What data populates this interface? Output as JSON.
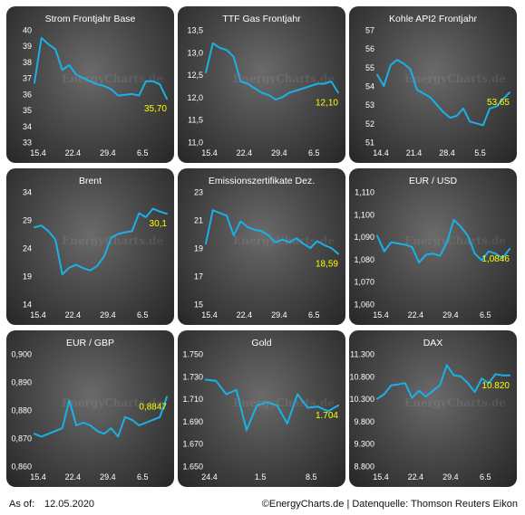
{
  "footer": {
    "as_of_label": "As of:",
    "date": "12.05.2020",
    "source": "©EnergyCharts.de | Datenquelle: Thomson Reuters Eikon"
  },
  "watermark": "EnergyCharts.de",
  "colors": {
    "line": "#1ab0e8",
    "value_label": "#ffff00",
    "text": "#ffffff"
  },
  "chart_data": [
    {
      "type": "line",
      "title": "Strom Frontjahr Base",
      "yticks": [
        "40",
        "39",
        "38",
        "37",
        "36",
        "35",
        "34",
        "33"
      ],
      "ylim": [
        33,
        40
      ],
      "xticks": [
        {
          "label": "15.4",
          "x": 0
        },
        {
          "label": "22.4",
          "x": 5
        },
        {
          "label": "29.4",
          "x": 10
        },
        {
          "label": "6.5",
          "x": 15
        }
      ],
      "xlim": [
        0,
        19
      ],
      "x": [
        0,
        1,
        2,
        3,
        4,
        5,
        6,
        7,
        8,
        9,
        10,
        11,
        12,
        13,
        14,
        15,
        16,
        17,
        18,
        19
      ],
      "values": [
        36.7,
        39.5,
        39.1,
        38.8,
        37.5,
        37.8,
        37.2,
        37.0,
        36.8,
        36.6,
        36.5,
        36.3,
        35.9,
        35.95,
        36.0,
        35.9,
        36.8,
        36.8,
        36.6,
        35.7
      ],
      "value_label": "35,70"
    },
    {
      "type": "line",
      "title": "TTF Gas Frontjahr",
      "yticks": [
        "13,5",
        "13,0",
        "12,5",
        "12,0",
        "11,5",
        "11,0"
      ],
      "ylim": [
        11.0,
        13.5
      ],
      "xticks": [
        {
          "label": "15.4",
          "x": 0
        },
        {
          "label": "22.4",
          "x": 5
        },
        {
          "label": "29.4",
          "x": 10
        },
        {
          "label": "6.5",
          "x": 15
        }
      ],
      "xlim": [
        0,
        19
      ],
      "x": [
        0,
        1,
        2,
        3,
        4,
        5,
        6,
        7,
        8,
        9,
        10,
        11,
        12,
        13,
        14,
        15,
        16,
        17,
        18,
        19
      ],
      "values": [
        12.55,
        13.2,
        13.1,
        13.05,
        12.9,
        12.35,
        12.3,
        12.2,
        12.1,
        12.05,
        11.95,
        12.0,
        12.1,
        12.15,
        12.2,
        12.25,
        12.3,
        12.3,
        12.35,
        12.1
      ],
      "value_label": "12,10"
    },
    {
      "type": "line",
      "title": "Kohle API2 Frontjahr",
      "yticks": [
        "57",
        "56",
        "55",
        "54",
        "53",
        "52",
        "51"
      ],
      "ylim": [
        51,
        57
      ],
      "xticks": [
        {
          "label": "14.4",
          "x": 0
        },
        {
          "label": "21.4",
          "x": 5
        },
        {
          "label": "28.4",
          "x": 10
        },
        {
          "label": "5.5",
          "x": 15
        }
      ],
      "xlim": [
        0,
        20
      ],
      "x": [
        0,
        1,
        2,
        3,
        4,
        5,
        6,
        7,
        8,
        9,
        10,
        11,
        12,
        13,
        14,
        15,
        16,
        17,
        18,
        19,
        20
      ],
      "values": [
        54.6,
        54.0,
        55.1,
        55.4,
        55.2,
        54.9,
        53.8,
        53.6,
        53.4,
        53.0,
        52.6,
        52.3,
        52.4,
        52.8,
        52.1,
        52.0,
        51.9,
        52.8,
        52.9,
        53.3,
        53.65
      ],
      "value_label": "53,65"
    },
    {
      "type": "line",
      "title": "Brent",
      "yticks": [
        "34",
        "29",
        "24",
        "19",
        "14"
      ],
      "ylim": [
        14,
        34
      ],
      "xticks": [
        {
          "label": "15.4",
          "x": 0
        },
        {
          "label": "22.4",
          "x": 5
        },
        {
          "label": "29.4",
          "x": 10
        },
        {
          "label": "6.5",
          "x": 15
        }
      ],
      "xlim": [
        0,
        19
      ],
      "x": [
        0,
        1,
        2,
        3,
        4,
        5,
        6,
        7,
        8,
        9,
        10,
        11,
        12,
        13,
        14,
        15,
        16,
        17,
        18,
        19
      ],
      "values": [
        27.7,
        28.0,
        27.0,
        25.5,
        19.3,
        20.5,
        21.0,
        20.4,
        20.0,
        20.8,
        22.5,
        25.8,
        26.5,
        26.8,
        27.0,
        30.2,
        29.5,
        31.0,
        30.5,
        30.1
      ],
      "value_label": "30,1"
    },
    {
      "type": "line",
      "title": "Emissionszertifikate Dez.",
      "yticks": [
        "23",
        "21",
        "19",
        "17",
        "15"
      ],
      "ylim": [
        15,
        23
      ],
      "xticks": [
        {
          "label": "15.4",
          "x": 0
        },
        {
          "label": "22.4",
          "x": 5
        },
        {
          "label": "29.4",
          "x": 10
        },
        {
          "label": "6.5",
          "x": 15
        }
      ],
      "xlim": [
        0,
        19
      ],
      "x": [
        0,
        1,
        2,
        3,
        4,
        5,
        6,
        7,
        8,
        9,
        10,
        11,
        12,
        13,
        14,
        15,
        16,
        17,
        18,
        19
      ],
      "values": [
        19.3,
        21.7,
        21.5,
        21.3,
        19.9,
        20.9,
        20.5,
        20.3,
        20.2,
        19.9,
        19.4,
        19.6,
        19.4,
        19.7,
        19.3,
        19.0,
        19.5,
        19.2,
        19.0,
        18.59
      ],
      "value_label": "18,59"
    },
    {
      "type": "line",
      "title": "EUR / USD",
      "yticks": [
        "1,110",
        "1,100",
        "1,090",
        "1,080",
        "1,070",
        "1,060"
      ],
      "ylim": [
        1.06,
        1.11
      ],
      "xticks": [
        {
          "label": "15.4",
          "x": 0
        },
        {
          "label": "22.4",
          "x": 5
        },
        {
          "label": "29.4",
          "x": 10
        },
        {
          "label": "6.5",
          "x": 15
        }
      ],
      "xlim": [
        0,
        19
      ],
      "x": [
        0,
        1,
        2,
        3,
        4,
        5,
        6,
        7,
        8,
        9,
        10,
        11,
        12,
        13,
        14,
        15,
        16,
        17,
        18,
        19
      ],
      "values": [
        1.0905,
        1.0835,
        1.0875,
        1.087,
        1.0865,
        1.0855,
        1.0785,
        1.082,
        1.0825,
        1.0815,
        1.0875,
        1.0975,
        1.0945,
        1.0905,
        1.0825,
        1.0795,
        1.0835,
        1.0825,
        1.0805,
        1.0846
      ],
      "value_label": "1,0846"
    },
    {
      "type": "line",
      "title": "EUR / GBP",
      "yticks": [
        "0,900",
        "0,890",
        "0,880",
        "0,870",
        "0,860"
      ],
      "ylim": [
        0.86,
        0.9
      ],
      "xticks": [
        {
          "label": "15.4",
          "x": 0
        },
        {
          "label": "22.4",
          "x": 5
        },
        {
          "label": "29.4",
          "x": 10
        },
        {
          "label": "6.5",
          "x": 15
        }
      ],
      "xlim": [
        0,
        19
      ],
      "x": [
        0,
        1,
        2,
        3,
        4,
        5,
        6,
        7,
        8,
        9,
        10,
        11,
        12,
        13,
        14,
        15,
        16,
        17,
        18,
        19
      ],
      "values": [
        0.8715,
        0.8705,
        0.8715,
        0.8725,
        0.8735,
        0.8835,
        0.8745,
        0.8755,
        0.8745,
        0.8725,
        0.8715,
        0.8735,
        0.8705,
        0.8775,
        0.8765,
        0.8745,
        0.8755,
        0.8765,
        0.8775,
        0.8847
      ],
      "value_label": "0,8847"
    },
    {
      "type": "line",
      "title": "Gold",
      "yticks": [
        "1.750",
        "1.730",
        "1.710",
        "1.690",
        "1.670",
        "1.650"
      ],
      "ylim": [
        1650,
        1750
      ],
      "xticks": [
        {
          "label": "24.4",
          "x": 0
        },
        {
          "label": "1.5",
          "x": 5
        },
        {
          "label": "8.5",
          "x": 10
        }
      ],
      "xlim": [
        0,
        13
      ],
      "x": [
        0,
        1,
        2,
        3,
        4,
        5,
        6,
        7,
        8,
        9,
        10,
        11,
        12,
        13
      ],
      "values": [
        1727,
        1726,
        1714,
        1718,
        1682,
        1704,
        1707,
        1704,
        1688,
        1714,
        1702,
        1703,
        1699,
        1704
      ],
      "value_label": "1.704"
    },
    {
      "type": "line",
      "title": "DAX",
      "yticks": [
        "11.300",
        "10.800",
        "10.300",
        "9.800",
        "9.300",
        "8.800"
      ],
      "ylim": [
        8800,
        11300
      ],
      "xticks": [
        {
          "label": "15.4",
          "x": 0
        },
        {
          "label": "22.4",
          "x": 5
        },
        {
          "label": "29.4",
          "x": 10
        },
        {
          "label": "6.5",
          "x": 15
        }
      ],
      "xlim": [
        0,
        19
      ],
      "x": [
        0,
        1,
        2,
        3,
        4,
        5,
        6,
        7,
        8,
        9,
        10,
        11,
        12,
        13,
        14,
        15,
        16,
        17,
        18,
        19
      ],
      "values": [
        10300,
        10400,
        10600,
        10620,
        10650,
        10320,
        10480,
        10350,
        10480,
        10600,
        11050,
        10820,
        10800,
        10650,
        10450,
        10750,
        10650,
        10850,
        10820,
        10820
      ],
      "value_label": "10.820"
    }
  ]
}
